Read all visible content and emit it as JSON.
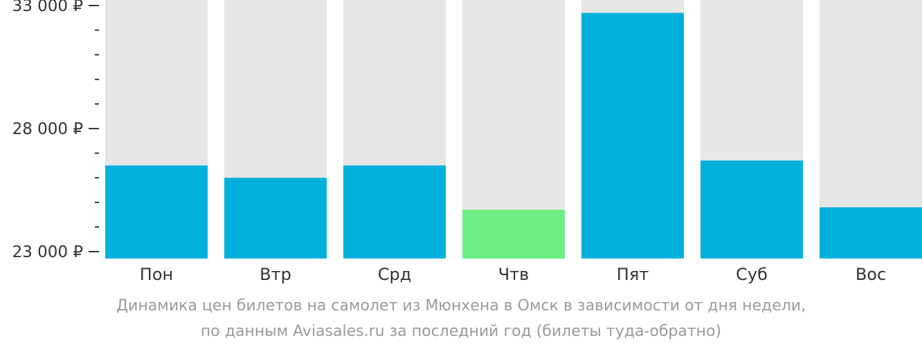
{
  "chart_data": {
    "type": "bar",
    "categories": [
      "Пон",
      "Втр",
      "Срд",
      "Чтв",
      "Пят",
      "Суб",
      "Вос"
    ],
    "values": [
      26500,
      26000,
      26500,
      24700,
      32700,
      26700,
      24800
    ],
    "bar_colors": [
      "#00b0dc",
      "#00b0dc",
      "#00b0dc",
      "#6ced86",
      "#00b0dc",
      "#00b0dc",
      "#00b0dc"
    ],
    "background_bar_color": "#e6e6e6",
    "ylim": [
      23000,
      33500
    ],
    "yticks": [
      {
        "value": 23000,
        "label": "23 000 ₽"
      },
      {
        "value": 28000,
        "label": "28 000 ₽"
      },
      {
        "value": 33000,
        "label": "33 000 ₽"
      }
    ],
    "minor_tick_step": 1000,
    "title": "",
    "xlabel": "",
    "ylabel": ""
  },
  "caption": {
    "line1": "Динамика цен билетов на самолет из Мюнхена в Омск в зависимости от дня недели,",
    "line2": "по данным Aviasales.ru за последний год (билеты туда-обратно)"
  }
}
